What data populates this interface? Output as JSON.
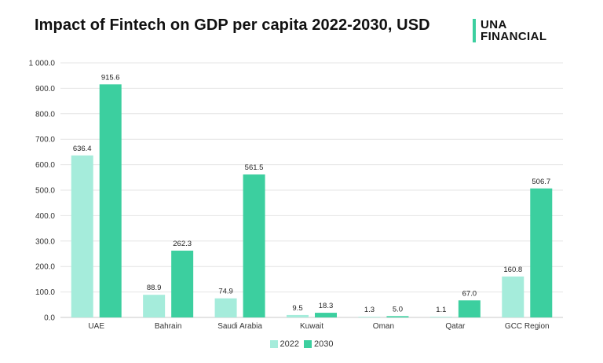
{
  "title": "Impact of Fintech on GDP per capita 2022-2030, USD",
  "logo": {
    "line1": "UNA",
    "line2": "FINANCIAL",
    "color": "#3ccf9f"
  },
  "chart_data": {
    "type": "bar",
    "title": "Impact of Fintech on GDP per capita 2022-2030, USD",
    "categories": [
      "UAE",
      "Bahrain",
      "Saudi Arabia",
      "Kuwait",
      "Oman",
      "Qatar",
      "GCC Region"
    ],
    "series": [
      {
        "name": "2022",
        "color": "#a5ecdb",
        "values": [
          636.4,
          88.9,
          74.9,
          9.5,
          1.3,
          1.1,
          160.8
        ],
        "labels": [
          "636.4",
          "88.9",
          "74.9",
          "9.5",
          "1.3",
          "1.1",
          "160.8"
        ]
      },
      {
        "name": "2030",
        "color": "#3ccf9f",
        "values": [
          915.6,
          262.3,
          561.5,
          18.3,
          5.0,
          67.0,
          506.7
        ],
        "labels": [
          "915.6",
          "262.3",
          "561.5",
          "18.3",
          "5.0",
          "67.0",
          "506.7"
        ]
      }
    ],
    "yticks": [
      "0.0",
      "100.0",
      "200.0",
      "300.0",
      "400.0",
      "500.0",
      "600.0",
      "700.0",
      "800.0",
      "900.0",
      "1 000.0"
    ],
    "ylim": [
      0,
      1000
    ],
    "grid": true,
    "legend": "bottom-center"
  }
}
